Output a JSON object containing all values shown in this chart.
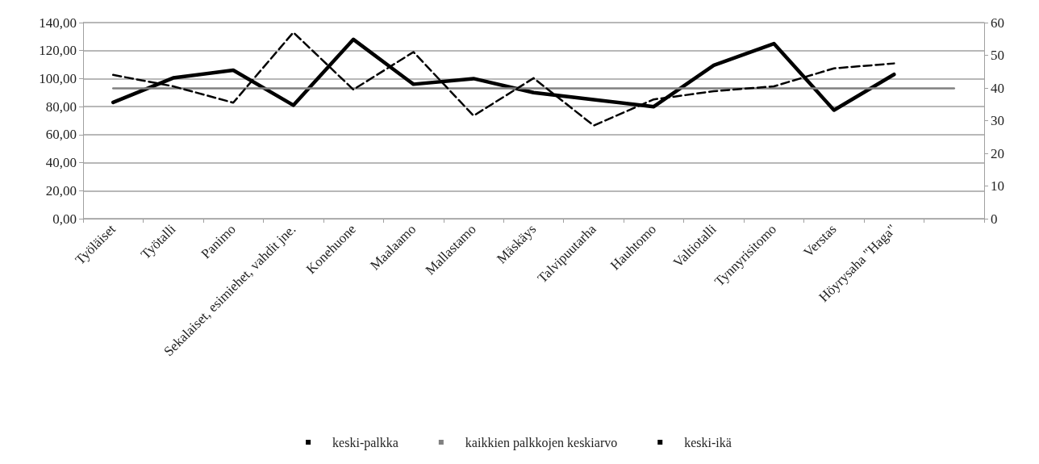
{
  "chart_data": {
    "type": "line",
    "categories": [
      "Työläiset",
      "Työtalli",
      "Panimo",
      "Sekalaiset, esimiehet, vahdit jne.",
      "Konehuone",
      "Maalaamo",
      "Mallastamo",
      "Mäskäys",
      "Talvipuutarha",
      "Hauhtomo",
      "Valtiotalli",
      "Tynnyrisitomo",
      "Verstas",
      "Höyrysaha \"Haga\"",
      null
    ],
    "series": [
      {
        "name": "keski-palkka",
        "color": "#000000",
        "line_style": "solid",
        "values": [
          83,
          100.5,
          106,
          81,
          128,
          96,
          100,
          90,
          85,
          80,
          109.5,
          125,
          77.5,
          103,
          null
        ]
      },
      {
        "name": "kaikkien palkkojen keskiarvo",
        "color": "#808080",
        "line_style": "solid",
        "values": [
          93,
          93,
          93,
          93,
          93,
          93,
          93,
          93,
          93,
          93,
          93,
          93,
          93,
          93,
          93
        ]
      },
      {
        "name": "keski-ikä",
        "color": "#000000",
        "line_style": "dashed",
        "axis": "y2",
        "values": [
          44,
          40.5,
          35.5,
          57,
          39.5,
          51,
          31.5,
          43,
          28.5,
          36.5,
          39,
          40.5,
          46,
          47.5,
          null
        ]
      }
    ],
    "ylim": [
      0,
      140
    ],
    "yticks": [
      {
        "value": 0,
        "label": "0,00"
      },
      {
        "value": 20,
        "label": "20,00"
      },
      {
        "value": 40,
        "label": "40,00"
      },
      {
        "value": 60,
        "label": "60,00"
      },
      {
        "value": 80,
        "label": "80,00"
      },
      {
        "value": 100,
        "label": "100,00"
      },
      {
        "value": 120,
        "label": "120,00"
      },
      {
        "value": 140,
        "label": "140,00"
      }
    ],
    "y2lim": [
      0,
      60
    ],
    "y2ticks": [
      0,
      10,
      20,
      30,
      40,
      50,
      60
    ],
    "grid": "y",
    "legend": "bottom",
    "marker": "none"
  }
}
